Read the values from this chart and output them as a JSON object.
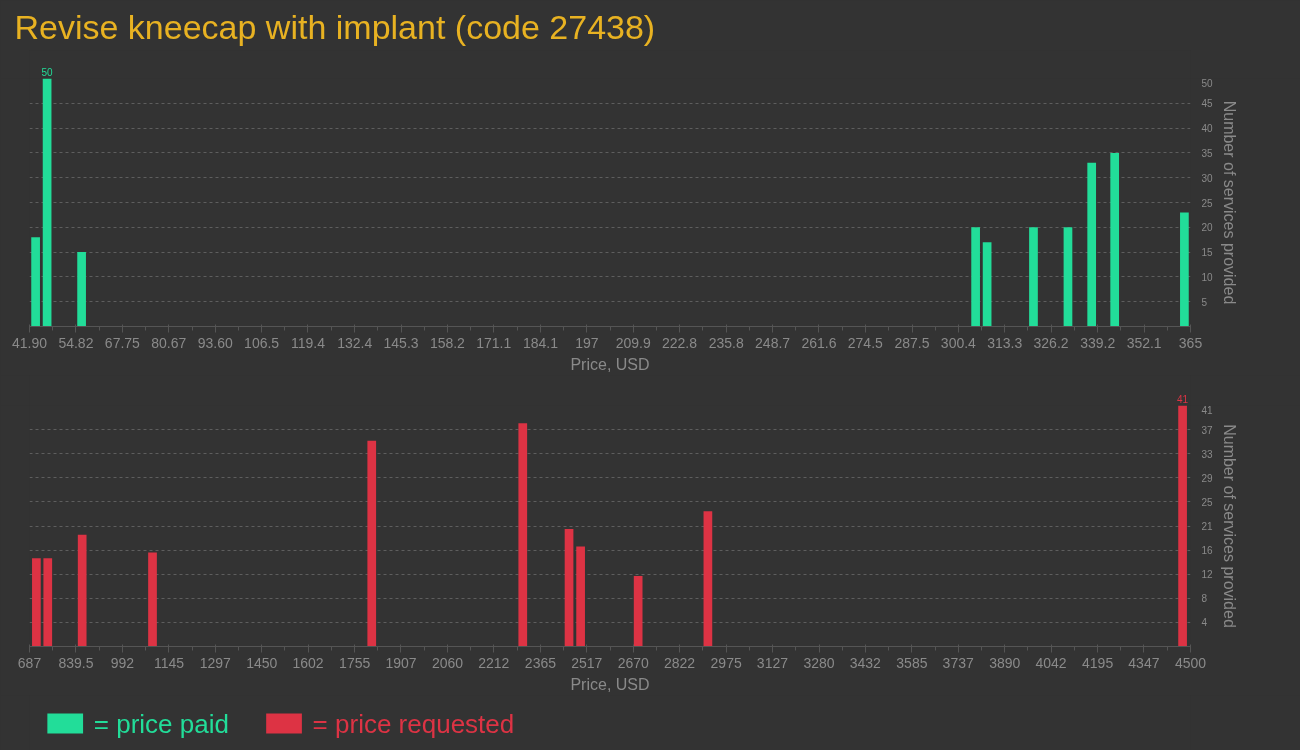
{
  "chart_data": [
    {
      "type": "bar",
      "title": "Revise kneecap with implant (code 27438)",
      "xlabel": "Price, USD",
      "ylabel": "Number of services provided",
      "x": [
        43.6,
        46.8,
        56.4,
        305.2,
        308.4,
        321.3,
        330.9,
        337.5,
        343.9,
        363.3
      ],
      "series": [
        {
          "name": "= price paid",
          "color": "#22dd99",
          "values": [
            18,
            50,
            15,
            20,
            17,
            20,
            20,
            33,
            35,
            23
          ],
          "value_labels": [
            null,
            "50",
            null,
            null,
            null,
            null,
            null,
            null,
            null,
            null
          ]
        }
      ],
      "xlim": [
        41.9,
        365
      ],
      "xticks": [
        {
          "value": 41.9,
          "label": "41.90"
        },
        54.82,
        67.75,
        80.67,
        {
          "value": 93.6,
          "label": "93.60"
        },
        106.5,
        119.4,
        132.4,
        145.3,
        158.2,
        171.1,
        184.1,
        197,
        209.9,
        222.8,
        235.8,
        248.7,
        261.6,
        274.5,
        287.5,
        300.4,
        313.3,
        326.2,
        339.2,
        352.1,
        365
      ],
      "ylim": [
        0,
        50
      ],
      "yticks": [
        5,
        10,
        15,
        20,
        25,
        30,
        35,
        40,
        45,
        50
      ],
      "grid": "y",
      "legend": "bottom left"
    },
    {
      "type": "bar",
      "xlabel": "Price, USD",
      "ylabel": "Number of services provided",
      "x": [
        709.6,
        747,
        860,
        1091,
        1811,
        2307,
        2459,
        2497,
        2686,
        2915,
        4474
      ],
      "series": [
        {
          "name": "= price requested",
          "color": "#dd3344",
          "values": [
            15,
            15,
            19,
            16,
            35,
            38,
            20,
            17,
            12,
            23,
            41
          ],
          "value_labels": [
            null,
            null,
            null,
            null,
            null,
            null,
            null,
            null,
            null,
            null,
            "41"
          ]
        }
      ],
      "xlim": [
        687,
        4500
      ],
      "xticks": [
        687,
        839.5,
        992,
        1145,
        1297,
        1450,
        1602,
        1755,
        1907,
        2060,
        2212,
        2365,
        2517,
        2670,
        2822,
        2975,
        3127,
        3280,
        3432,
        3585,
        3737,
        3890,
        4042,
        4195,
        4347,
        4500
      ],
      "ylim": [
        0,
        41
      ],
      "yticks": [
        {
          "value": 4.1,
          "label": "4"
        },
        {
          "value": 8.2,
          "label": "8"
        },
        {
          "value": 12.3,
          "label": "12"
        },
        {
          "value": 16.4,
          "label": "16"
        },
        {
          "value": 20.5,
          "label": "21"
        },
        {
          "value": 24.6,
          "label": "25"
        },
        {
          "value": 28.7,
          "label": "29"
        },
        {
          "value": 32.8,
          "label": "33"
        },
        {
          "value": 36.9,
          "label": "37"
        },
        41
      ],
      "grid": "y",
      "legend": "bottom left"
    }
  ]
}
